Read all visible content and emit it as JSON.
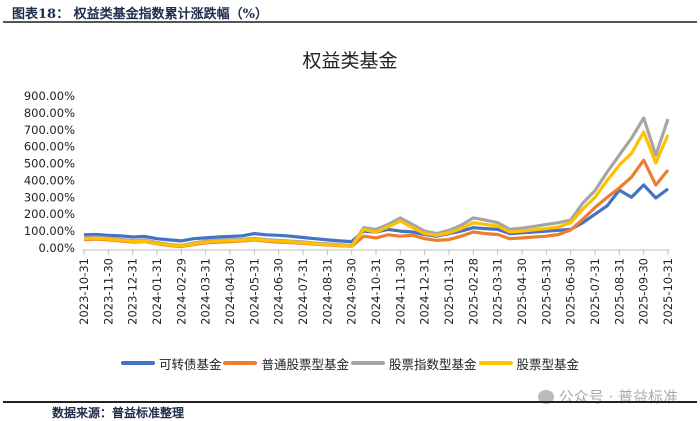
{
  "header": {
    "figure_title": "图表18： 权益类基金指数累计涨跌幅（%）"
  },
  "footer": {
    "source": "数据来源：普益标准整理",
    "watermark": "公众号 · 普益标准",
    "watermark_icon": "wechat-icon"
  },
  "chart_data": {
    "type": "line",
    "title": "权益类基金",
    "xlabel": "",
    "ylabel": "",
    "ylim": [
      0,
      900
    ],
    "yticks": [
      "0.00%",
      "100.00%",
      "200.00%",
      "300.00%",
      "400.00%",
      "500.00%",
      "600.00%",
      "700.00%",
      "800.00%",
      "900.00%"
    ],
    "xticks": [
      "2023-10-31",
      "2023-11-30",
      "2023-12-31",
      "2024-01-31",
      "2024-02-29",
      "2024-03-31",
      "2024-04-30",
      "2024-05-31",
      "2024-06-30",
      "2024-07-31",
      "2024-08-31",
      "2024-09-30",
      "2024-10-31",
      "2024-11-30",
      "2024-12-31",
      "2025-01-31",
      "2025-02-28",
      "2025-03-31",
      "2025-04-30",
      "2025-05-31",
      "2025-06-30",
      "2025-07-31",
      "2025-08-31",
      "2025-09-30",
      "2025-10-31"
    ],
    "x_note_points_per_tick": 2,
    "grid": false,
    "legend_position": "bottom",
    "series": [
      {
        "name": "可转债基金",
        "color": "#4472C4",
        "values": [
          78,
          80,
          75,
          72,
          65,
          68,
          55,
          48,
          42,
          55,
          60,
          65,
          68,
          72,
          85,
          78,
          75,
          70,
          62,
          55,
          48,
          42,
          38,
          100,
          95,
          110,
          100,
          95,
          80,
          70,
          85,
          100,
          120,
          115,
          110,
          85,
          90,
          95,
          100,
          105,
          110,
          150,
          200,
          250,
          343,
          300,
          373,
          296,
          350
        ]
      },
      {
        "name": "普通股票型基金",
        "color": "#ED7D31",
        "values": [
          50,
          52,
          48,
          42,
          35,
          38,
          25,
          15,
          8,
          20,
          30,
          35,
          38,
          42,
          48,
          40,
          35,
          32,
          28,
          22,
          18,
          14,
          10,
          70,
          60,
          78,
          70,
          75,
          55,
          45,
          50,
          70,
          95,
          85,
          80,
          55,
          60,
          65,
          70,
          80,
          107,
          170,
          240,
          300,
          355,
          420,
          520,
          373,
          462
        ]
      },
      {
        "name": "股票指数型基金",
        "color": "#A5A5A5",
        "values": [
          62,
          64,
          58,
          52,
          43,
          46,
          33,
          22,
          15,
          30,
          40,
          45,
          48,
          51,
          57,
          50,
          45,
          41,
          36,
          29,
          24,
          20,
          14,
          120,
          110,
          140,
          178,
          140,
          100,
          85,
          105,
          135,
          178,
          165,
          150,
          110,
          118,
          128,
          140,
          150,
          166,
          266,
          340,
          450,
          550,
          650,
          770,
          550,
          764
        ]
      },
      {
        "name": "股票型基金",
        "color": "#FFC000",
        "values": [
          55,
          57,
          52,
          46,
          38,
          40,
          28,
          18,
          12,
          25,
          35,
          40,
          43,
          46,
          52,
          45,
          40,
          36,
          32,
          25,
          20,
          16,
          10,
          110,
          95,
          125,
          160,
          120,
          85,
          75,
          90,
          115,
          150,
          140,
          130,
          95,
          100,
          108,
          115,
          125,
          150,
          230,
          300,
          400,
          490,
          560,
          687,
          503,
          670
        ]
      }
    ]
  }
}
